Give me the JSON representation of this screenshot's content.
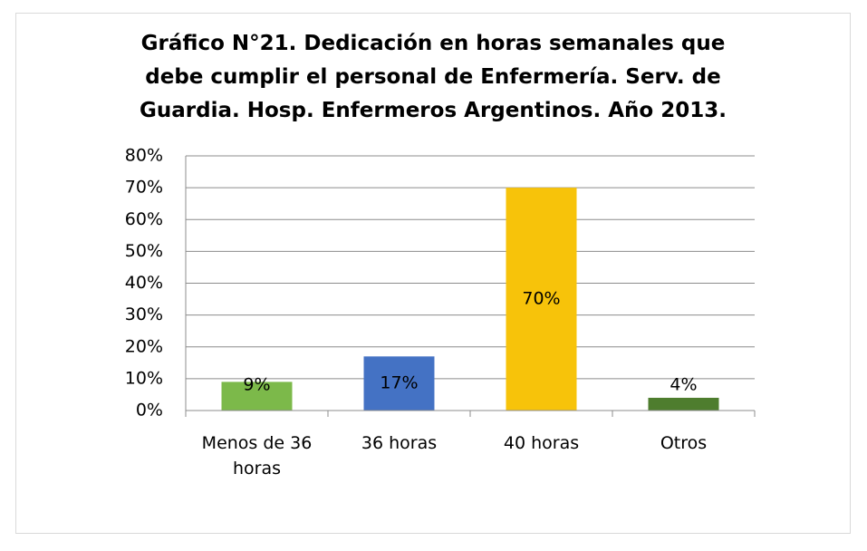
{
  "chart_data": {
    "type": "bar",
    "title": "Gráfico N°21. Dedicación en horas semanales que debe cumplir el personal de Enfermería. Serv. de Guardia. Hosp. Enfermeros Argentinos. Año 2013.",
    "categories": [
      "Menos de 36 horas",
      "36 horas",
      "40 horas",
      "Otros"
    ],
    "values": [
      9,
      17,
      70,
      4
    ],
    "value_labels": [
      "9%",
      "17%",
      "70%",
      "4%"
    ],
    "colors": [
      "#7cb94a",
      "#4472c4",
      "#f7c30a",
      "#4e7d2e"
    ],
    "ylim": [
      0,
      80
    ],
    "yticks": [
      {
        "value": 0,
        "label": "0%"
      },
      {
        "value": 10,
        "label": "10%"
      },
      {
        "value": 20,
        "label": "20%"
      },
      {
        "value": 30,
        "label": "30%"
      },
      {
        "value": 40,
        "label": "40%"
      },
      {
        "value": 50,
        "label": "50%"
      },
      {
        "value": 60,
        "label": "60%"
      },
      {
        "value": 70,
        "label": "70%"
      },
      {
        "value": 80,
        "label": "80%"
      }
    ],
    "grid": true
  }
}
